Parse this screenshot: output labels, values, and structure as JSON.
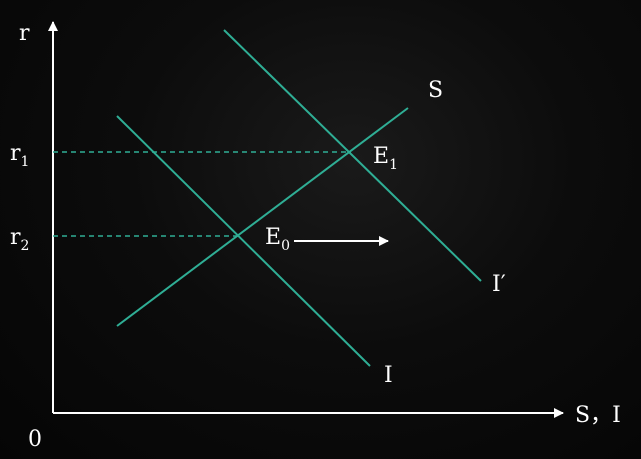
{
  "axes": {
    "y_label": "r",
    "x_label": "S，I",
    "origin_label": "0"
  },
  "ticks": {
    "r1": {
      "base": "r",
      "sub": "1"
    },
    "r2": {
      "base": "r",
      "sub": "2"
    }
  },
  "curves": {
    "saving": "S",
    "investment": "I",
    "investment_shifted": "I′"
  },
  "points": {
    "e0": {
      "base": "E",
      "sub": "0"
    },
    "e1": {
      "base": "E",
      "sub": "1"
    }
  },
  "colors": {
    "curve": "#2fae95",
    "axis": "#ffffff",
    "background": "#000000"
  }
}
